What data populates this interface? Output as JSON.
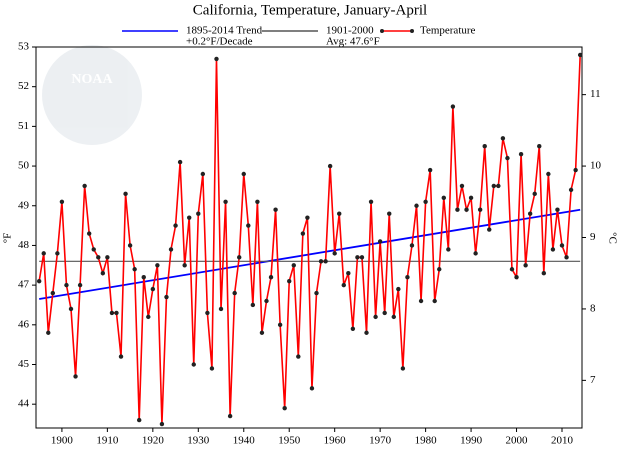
{
  "chart_data": {
    "type": "line",
    "title": "California, Temperature, January-April",
    "watermark": "NOAA",
    "ylabel": "°F",
    "y2label": "°C",
    "xlim": [
      1894.3,
      2014.4
    ],
    "xticks": [
      1900,
      1910,
      1920,
      1930,
      1940,
      1950,
      1960,
      1970,
      1980,
      1990,
      2000,
      2010
    ],
    "ylim": [
      43.4,
      53
    ],
    "yticks": [
      44,
      45,
      46,
      47,
      48,
      49,
      50,
      51,
      52,
      53
    ],
    "y2lim": [
      6.333,
      11.667
    ],
    "y2ticks": [
      7,
      8,
      9,
      10,
      11
    ],
    "grid": false,
    "series": [
      {
        "name": "1895-2014 Trend",
        "note": "+0.2°F/Decade",
        "color": "#0000ff",
        "x": [
          1895,
          2014
        ],
        "values": [
          46.65,
          48.9
        ]
      },
      {
        "name": "1901-2000",
        "note": "Avg: 47.6°F",
        "color": "#555555",
        "x": [
          1895,
          2014
        ],
        "values": [
          47.6,
          47.6
        ]
      },
      {
        "name": "Temperature",
        "color": "#ff0000",
        "marker_color": "#222222",
        "x": [
          1895,
          1896,
          1897,
          1898,
          1899,
          1900,
          1901,
          1902,
          1903,
          1904,
          1905,
          1906,
          1907,
          1908,
          1909,
          1910,
          1911,
          1912,
          1913,
          1914,
          1915,
          1916,
          1917,
          1918,
          1919,
          1920,
          1921,
          1922,
          1923,
          1924,
          1925,
          1926,
          1927,
          1928,
          1929,
          1930,
          1931,
          1932,
          1933,
          1934,
          1935,
          1936,
          1937,
          1938,
          1939,
          1940,
          1941,
          1942,
          1943,
          1944,
          1945,
          1946,
          1947,
          1948,
          1949,
          1950,
          1951,
          1952,
          1953,
          1954,
          1955,
          1956,
          1957,
          1958,
          1959,
          1960,
          1961,
          1962,
          1963,
          1964,
          1965,
          1966,
          1967,
          1968,
          1969,
          1970,
          1971,
          1972,
          1973,
          1974,
          1975,
          1976,
          1977,
          1978,
          1979,
          1980,
          1981,
          1982,
          1983,
          1984,
          1985,
          1986,
          1987,
          1988,
          1989,
          1990,
          1991,
          1992,
          1993,
          1994,
          1995,
          1996,
          1997,
          1998,
          1999,
          2000,
          2001,
          2002,
          2003,
          2004,
          2005,
          2006,
          2007,
          2008,
          2009,
          2010,
          2011,
          2012,
          2013,
          2014
        ],
        "values": [
          47.1,
          47.8,
          45.8,
          46.8,
          47.8,
          49.1,
          47.0,
          46.4,
          44.7,
          47.0,
          49.5,
          48.3,
          47.9,
          47.7,
          47.3,
          47.7,
          46.3,
          46.3,
          45.2,
          49.3,
          48.0,
          47.4,
          43.6,
          47.2,
          46.2,
          46.9,
          47.5,
          43.5,
          46.7,
          47.9,
          48.5,
          50.1,
          47.5,
          48.7,
          45.0,
          48.8,
          49.8,
          46.3,
          44.9,
          52.7,
          46.4,
          49.1,
          43.7,
          46.8,
          47.7,
          49.8,
          48.5,
          46.5,
          49.1,
          45.8,
          46.6,
          47.2,
          48.9,
          46.0,
          43.9,
          47.1,
          47.5,
          45.2,
          48.3,
          48.7,
          44.4,
          46.8,
          47.6,
          47.6,
          50.0,
          47.8,
          48.8,
          47.0,
          47.3,
          45.9,
          47.7,
          47.7,
          45.8,
          49.1,
          46.2,
          48.1,
          46.3,
          48.8,
          46.2,
          46.9,
          44.9,
          47.2,
          48.0,
          49.0,
          46.6,
          49.1,
          49.9,
          46.6,
          47.4,
          49.2,
          47.9,
          51.5,
          48.9,
          49.5,
          48.9,
          49.2,
          47.8,
          48.9,
          50.5,
          48.4,
          49.5,
          49.5,
          50.7,
          50.2,
          47.4,
          47.2,
          50.3,
          47.5,
          48.8,
          49.3,
          50.5,
          47.3,
          49.8,
          47.9,
          48.9,
          48.0,
          47.7,
          49.4,
          49.9,
          52.8
        ]
      }
    ]
  }
}
